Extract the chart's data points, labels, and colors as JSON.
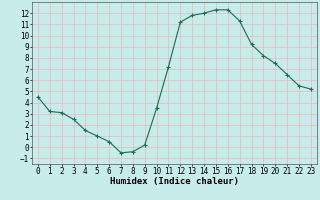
{
  "x": [
    0,
    1,
    2,
    3,
    4,
    5,
    6,
    7,
    8,
    9,
    10,
    11,
    12,
    13,
    14,
    15,
    16,
    17,
    18,
    19,
    20,
    21,
    22,
    23
  ],
  "y": [
    4.5,
    3.2,
    3.1,
    2.5,
    1.5,
    1.0,
    0.5,
    -0.5,
    -0.4,
    0.2,
    3.5,
    7.2,
    11.2,
    11.8,
    12.0,
    12.3,
    12.3,
    11.3,
    9.2,
    8.2,
    7.5,
    6.5,
    5.5,
    5.2
  ],
  "xlabel": "Humidex (Indice chaleur)",
  "ylim": [
    -1.5,
    13
  ],
  "xlim": [
    -0.5,
    23.5
  ],
  "yticks": [
    -1,
    0,
    1,
    2,
    3,
    4,
    5,
    6,
    7,
    8,
    9,
    10,
    11,
    12
  ],
  "xticks": [
    0,
    1,
    2,
    3,
    4,
    5,
    6,
    7,
    8,
    9,
    10,
    11,
    12,
    13,
    14,
    15,
    16,
    17,
    18,
    19,
    20,
    21,
    22,
    23
  ],
  "line_color": "#1a6b5a",
  "marker": "+",
  "marker_size": 3,
  "marker_linewidth": 0.8,
  "line_width": 0.8,
  "background_color": "#c8ecea",
  "grid_color": "#e8b8b8",
  "tick_fontsize": 5.5,
  "xlabel_fontsize": 6.5
}
